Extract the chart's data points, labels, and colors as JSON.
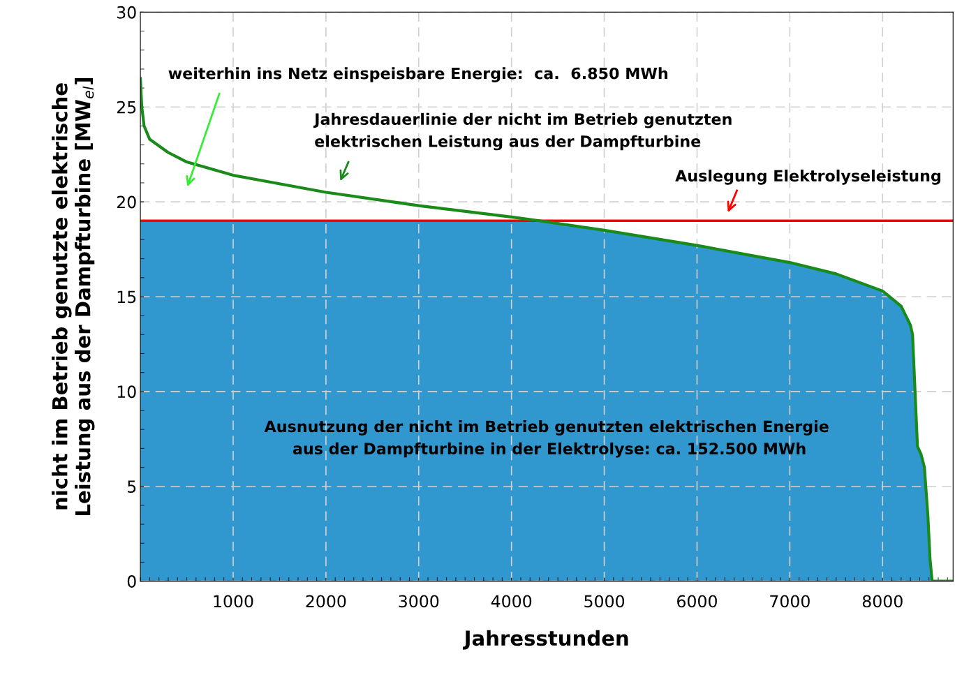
{
  "chart_data": {
    "type": "line",
    "xlabel": "Jahresstunden",
    "ylabel": "nicht im Betrieb genutzte elektrische\nLeistung aus der Dampfturbine [MW$_{el}$]",
    "x": [
      0,
      15,
      40,
      100,
      300,
      500,
      1000,
      2000,
      3000,
      4000,
      4300,
      5000,
      6000,
      7000,
      7500,
      8000,
      8200,
      8300,
      8323,
      8376,
      8414,
      8451,
      8489,
      8511,
      8534,
      8760
    ],
    "series": [
      {
        "type": "area",
        "color": "#3197cf",
        "values": [
          19,
          19,
          19,
          19,
          19,
          19,
          19,
          19,
          19,
          19,
          19,
          18.5,
          17.7,
          16.8,
          16.2,
          15.3,
          14.5,
          13.5,
          13,
          7.1,
          6.7,
          6,
          3.4,
          1.2,
          0,
          0
        ]
      },
      {
        "color": "#1a8a1a",
        "values": [
          26.5,
          25,
          24,
          23.3,
          22.6,
          22.1,
          21.4,
          20.5,
          19.8,
          19.2,
          19,
          18.5,
          17.7,
          16.8,
          16.2,
          15.3,
          14.5,
          13.5,
          13,
          7.1,
          6.7,
          6,
          3.4,
          1.2,
          0,
          0
        ]
      }
    ],
    "ref_lines": [
      {
        "axis": "y",
        "value": 19,
        "color": "#ff0000"
      }
    ],
    "xlim": [
      0,
      8760
    ],
    "xticks": [
      1000,
      2000,
      3000,
      4000,
      5000,
      6000,
      7000,
      8000
    ],
    "ylim": [
      0,
      30
    ],
    "yticks": [
      0,
      5,
      10,
      15,
      20,
      25,
      30
    ],
    "grid": true,
    "line_style": "solid",
    "marker": "none",
    "annotations": [
      "weiterhin ins Netz einspeisbare Energie:  ca.  6.850 MWh",
      "Jahresdauerlinie der nicht im Betrieb genutzten\nelektrischen Leistung aus der Dampfturbine",
      "Auslegung Elektrolyseleistung",
      "Ausnutzung der nicht im Betrieb genutzten elektrischen Energie\n aus der Dampfturbine in der Elektrolyse: ca. 152.500 MWh"
    ]
  }
}
